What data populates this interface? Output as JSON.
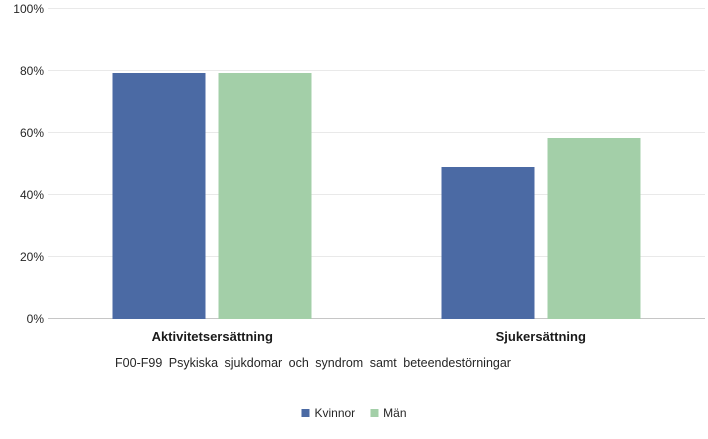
{
  "chart_data": {
    "type": "bar",
    "title": "",
    "categories": [
      "Aktivitetsersättning",
      "Sjukersättning"
    ],
    "series": [
      {
        "name": "Kvinnor",
        "color": "#4b6aa4",
        "values": [
          79.4,
          48.9
        ]
      },
      {
        "name": "Män",
        "color": "#a3cfa8",
        "values": [
          79.4,
          58.5
        ]
      }
    ],
    "xlabel": "F00-F99 Psykiska sjukdomar och syndrom samt beteendestörningar",
    "ylabel": "",
    "ylim": [
      0,
      100
    ],
    "yticks": [
      {
        "label": "0%",
        "value": 0
      },
      {
        "label": "20%",
        "value": 20
      },
      {
        "label": "40%",
        "value": 40
      },
      {
        "label": "60%",
        "value": 60
      },
      {
        "label": "80%",
        "value": 80
      },
      {
        "label": "100%",
        "value": 100
      }
    ],
    "grid": true,
    "legend_position": "bottom",
    "colors": {
      "gridline": "#e9e9e9",
      "axis_line": "#c6c6c6",
      "tick_text": "#262626",
      "category_text": "#1a1a1a"
    }
  }
}
